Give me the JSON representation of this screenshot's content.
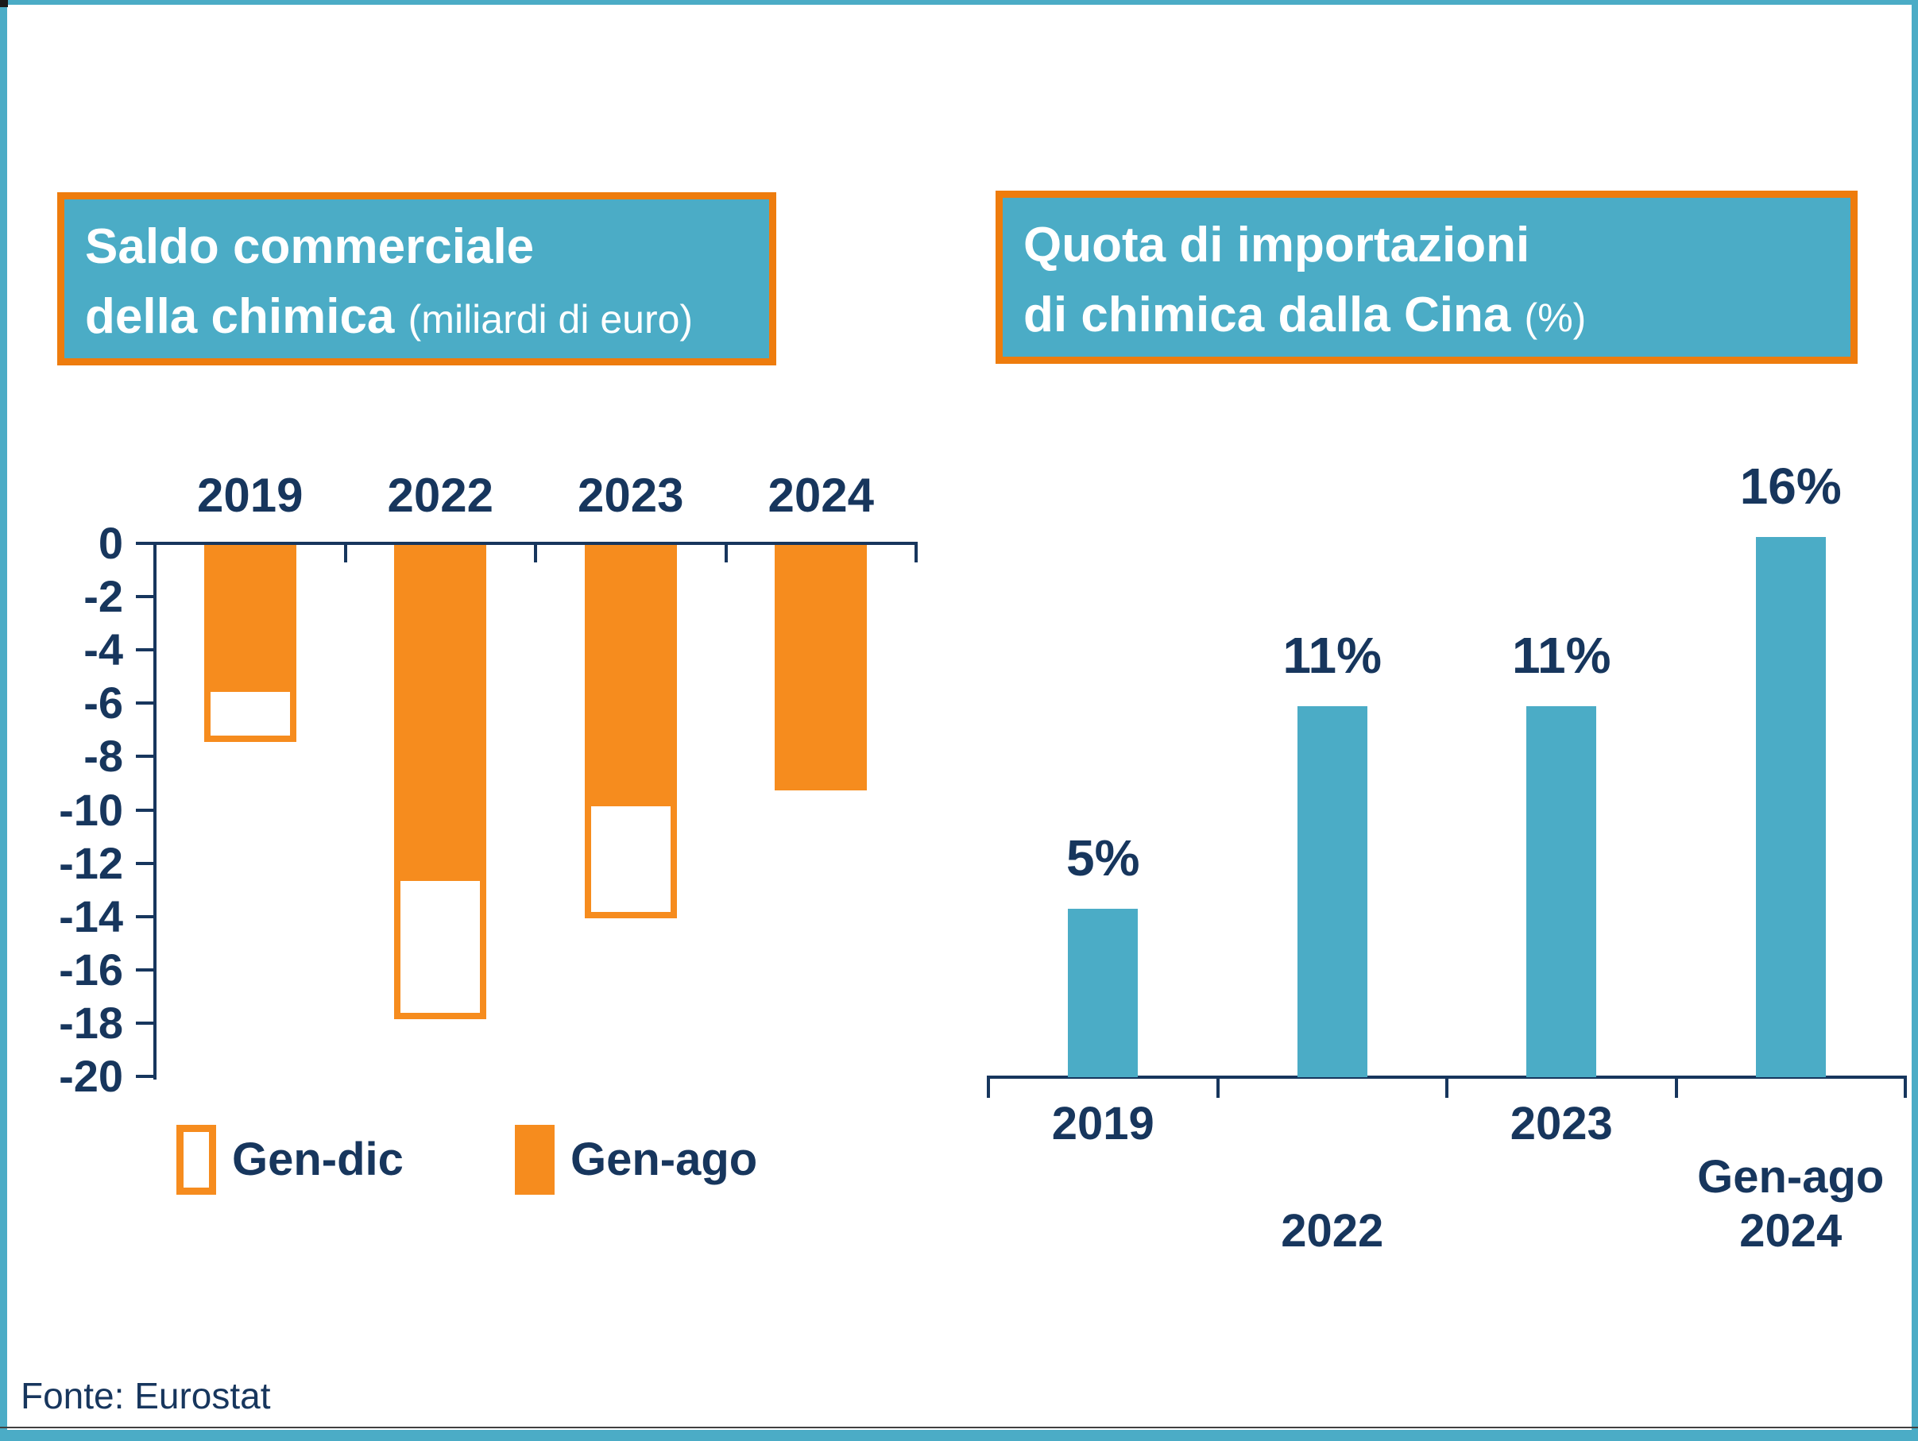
{
  "slide": {
    "source_note": "Fonte: Eurostat"
  },
  "colors": {
    "teal": "#4BACC6",
    "orange": "#F68C1E",
    "orange_border": "#EE7C0D",
    "navy": "#17365D",
    "background": "#FFFFFF"
  },
  "left_chart": {
    "title_line1": "Saldo commerciale",
    "title_line2_bold": "della chimica",
    "title_line2_note": "(miliardi di euro)"
  },
  "right_chart": {
    "title_line1": "Quota di importazioni",
    "title_line2_bold": "di chimica dalla Cina",
    "title_line2_note": "(%)"
  },
  "legend": {
    "items": [
      {
        "label": "Gen-dic",
        "swatch": "white-orange-outline"
      },
      {
        "label": "Gen-ago",
        "swatch": "solid-orange"
      }
    ]
  },
  "chart_data": [
    {
      "type": "bar",
      "title": "Saldo commerciale della chimica (miliardi di euro)",
      "categories": [
        "2019",
        "2022",
        "2023",
        "2024"
      ],
      "series": [
        {
          "name": "Gen-dic",
          "values": [
            -7.4,
            -17.8,
            -14.0,
            null
          ]
        },
        {
          "name": "Gen-ago",
          "values": [
            -5.5,
            -12.6,
            -9.8,
            -9.2
          ]
        }
      ],
      "ylim": [
        -20,
        0
      ],
      "ytick_step": 2,
      "grid": false,
      "legend_position": "bottom",
      "x_labels_position": "top"
    },
    {
      "type": "bar",
      "title": "Quota di importazioni di chimica dalla Cina (%)",
      "categories": [
        "2019",
        "2022",
        "2023",
        "Gen-ago 2024"
      ],
      "x_label_lines": [
        [
          "2019"
        ],
        [
          "2022"
        ],
        [
          "2023"
        ],
        [
          "Gen-ago",
          "2024"
        ]
      ],
      "x_label_row": [
        1,
        2,
        1,
        2
      ],
      "values": [
        5,
        11,
        11,
        16
      ],
      "data_labels": [
        "5%",
        "11%",
        "11%",
        "16%"
      ],
      "ylim": [
        0,
        17
      ],
      "grid": false
    }
  ]
}
